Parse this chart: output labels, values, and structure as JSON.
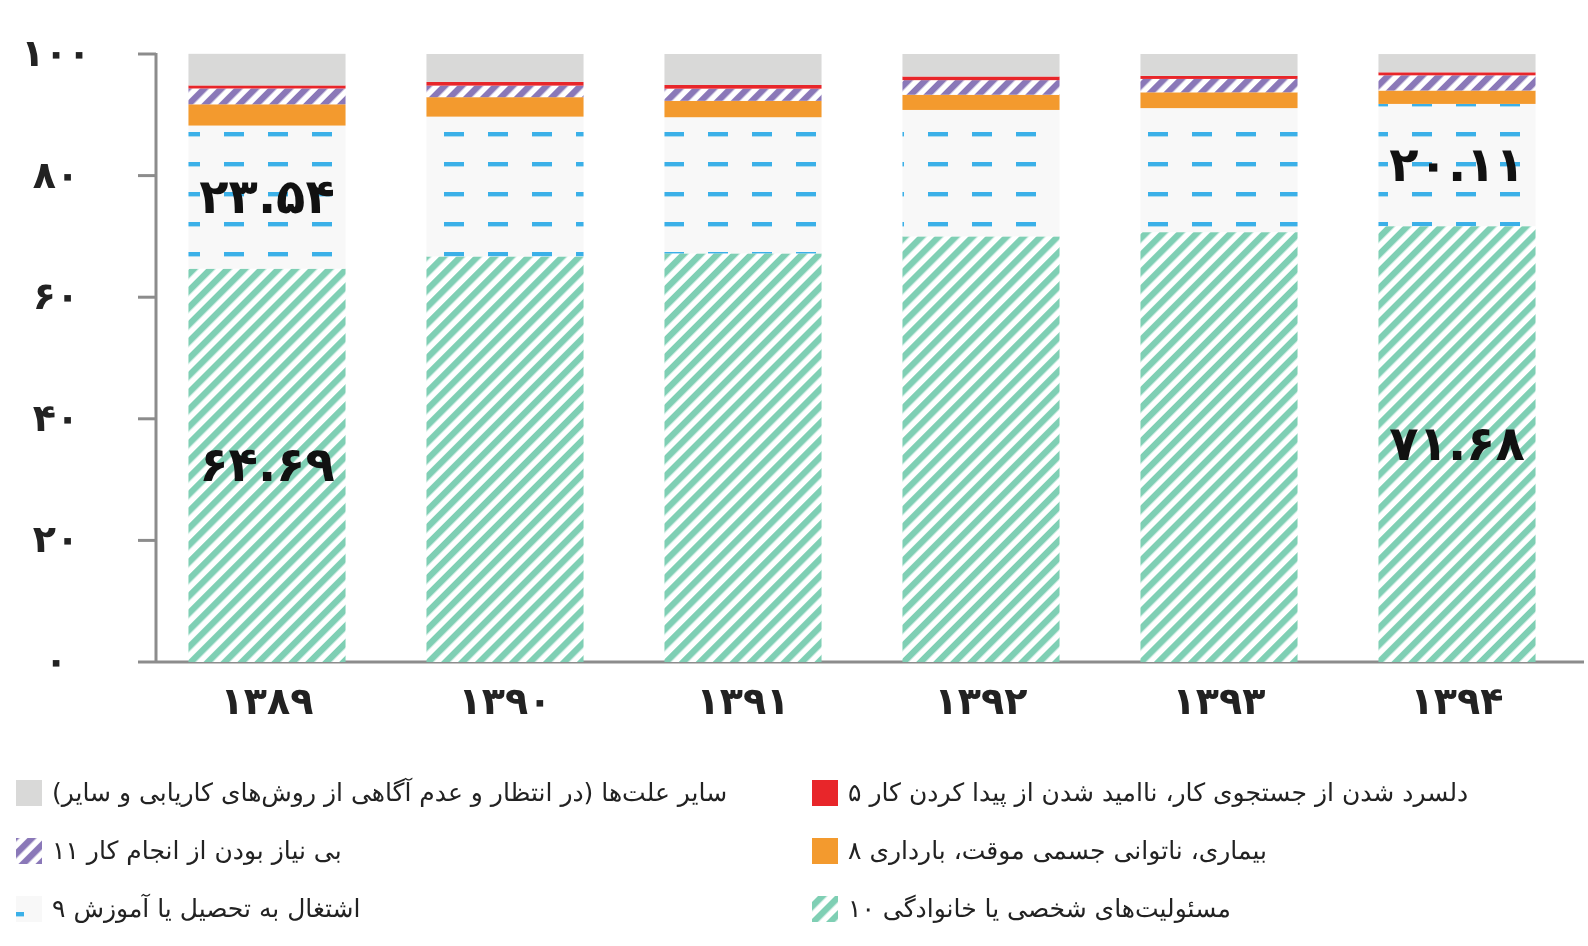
{
  "chart_data": {
    "type": "bar",
    "stacked": true,
    "legend": "bottom",
    "grid": false,
    "categories": [
      "۱۳۸۹",
      "۱۳۹۰",
      "۱۳۹۱",
      "۱۳۹۲",
      "۱۳۹۳",
      "۱۳۹۴"
    ],
    "ylim": [
      0,
      100
    ],
    "yticks": [
      {
        "value": 0,
        "label": "۰"
      },
      {
        "value": 20,
        "label": "۲۰"
      },
      {
        "value": 40,
        "label": "۴۰"
      },
      {
        "value": 60,
        "label": "۶۰"
      },
      {
        "value": 80,
        "label": "۸۰"
      },
      {
        "value": 100,
        "label": "۱۰۰"
      }
    ],
    "series": [
      {
        "name": "مسئولیت‌های شخصی یا خانوادگی ۱۰",
        "color": "#7fcfb4",
        "values": [
          64.69,
          66.7,
          67.2,
          70.0,
          70.7,
          71.68
        ],
        "value_labels": [
          "۶۴.۶۹",
          null,
          null,
          null,
          null,
          "۷۱.۶۸"
        ]
      },
      {
        "name": "اشتغال به تحصیل یا آموزش ۹",
        "color": "#3bb0e8",
        "values": [
          23.54,
          23.0,
          22.4,
          20.8,
          20.4,
          20.11
        ],
        "value_labels": [
          "۲۳.۵۴",
          null,
          null,
          null,
          null,
          "۲۰.۱۱"
        ]
      },
      {
        "name": "بیماری، ناتوانی جسمی موقت، بارداری ۸",
        "color": "#f39a2e",
        "values": [
          3.5,
          3.2,
          2.7,
          2.5,
          2.6,
          2.2
        ]
      },
      {
        "name": "بی نیاز بودن از انجام کار ۱۱",
        "color": "#8a78b8",
        "values": [
          2.6,
          1.9,
          2.0,
          2.4,
          2.2,
          2.5
        ]
      },
      {
        "name": "دلسرد شدن از جستجوی کار، ناامید شدن از پیدا کردن کار ۵",
        "color": "#e8262a",
        "values": [
          0.5,
          0.6,
          0.6,
          0.6,
          0.5,
          0.5
        ]
      },
      {
        "name": "سایر علت‌ها (در انتظار و عدم آگاهی از روش‌های کاریابی و سایر)",
        "color": "#d9d9d8",
        "values": [
          5.2,
          4.6,
          5.1,
          3.7,
          3.6,
          3.0
        ]
      }
    ]
  }
}
